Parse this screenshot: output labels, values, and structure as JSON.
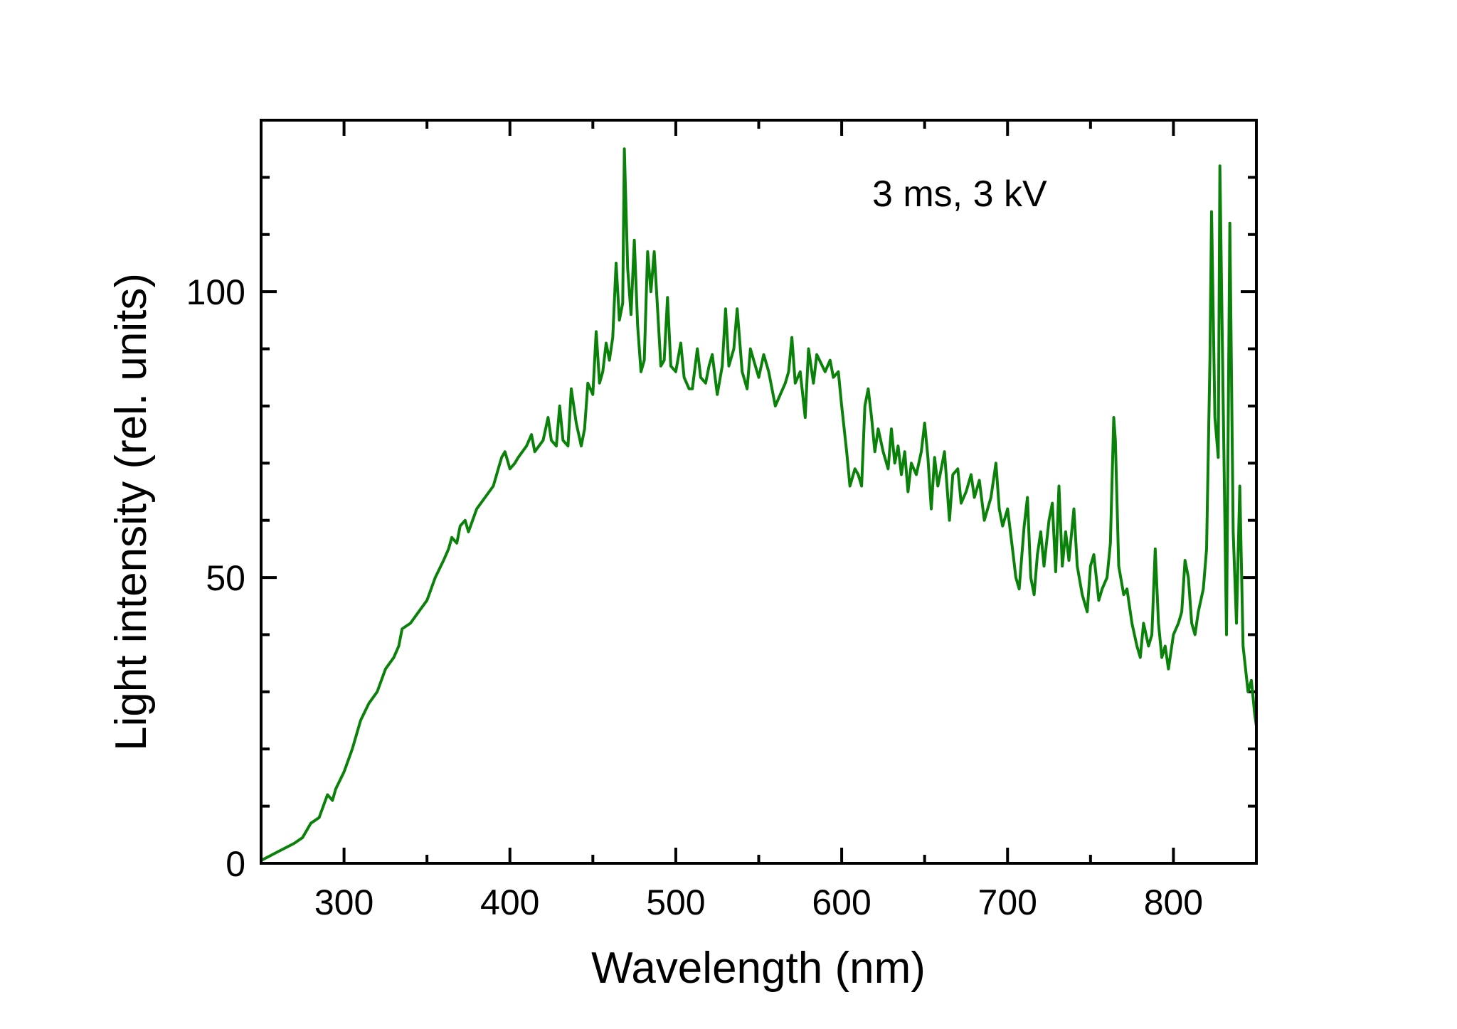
{
  "chart_data": {
    "type": "line",
    "title": "",
    "xlabel": "Wavelength (nm)",
    "ylabel": "Light intensity (rel. units)",
    "xlim": [
      250,
      850
    ],
    "ylim": [
      0,
      130
    ],
    "x_ticks": [
      300,
      400,
      500,
      600,
      700,
      800
    ],
    "x_tick_labels": [
      "300",
      "400",
      "500",
      "600",
      "700",
      "800"
    ],
    "x_minor_step": 50,
    "y_ticks": [
      0,
      50,
      100
    ],
    "y_tick_labels": [
      "0",
      "50",
      "100"
    ],
    "y_minor_step": 10,
    "grid": false,
    "annotation": "3 ms, 3 kV",
    "line_color": "#0a820a",
    "series": [
      {
        "x": [
          250,
          260,
          270,
          275,
          280,
          285,
          290,
          293,
          295,
          300,
          305,
          310,
          315,
          320,
          325,
          330,
          333,
          335,
          340,
          345,
          350,
          355,
          360,
          363,
          365,
          368,
          370,
          373,
          375,
          380,
          385,
          390,
          393,
          395,
          397,
          400,
          403,
          405,
          410,
          413,
          415,
          420,
          423,
          425,
          428,
          430,
          432,
          435,
          437,
          440,
          443,
          445,
          447,
          450,
          452,
          454,
          456,
          458,
          460,
          462,
          464,
          466,
          468,
          469,
          471,
          473,
          475,
          477,
          479,
          481,
          483,
          485,
          487,
          489,
          491,
          493,
          495,
          497,
          500,
          503,
          505,
          508,
          510,
          513,
          515,
          518,
          520,
          522,
          525,
          528,
          530,
          532,
          535,
          537,
          540,
          543,
          545,
          548,
          550,
          553,
          556,
          560,
          563,
          566,
          568,
          570,
          572,
          575,
          578,
          580,
          583,
          585,
          590,
          593,
          595,
          598,
          600,
          603,
          605,
          608,
          610,
          612,
          614,
          616,
          618,
          620,
          622,
          625,
          628,
          630,
          632,
          634,
          636,
          638,
          640,
          642,
          645,
          648,
          650,
          652,
          654,
          656,
          658,
          660,
          662,
          665,
          667,
          670,
          672,
          675,
          678,
          680,
          683,
          686,
          690,
          693,
          695,
          697,
          700,
          703,
          705,
          707,
          710,
          712,
          714,
          716,
          718,
          720,
          722,
          725,
          727,
          729,
          731,
          733,
          735,
          737,
          740,
          742,
          745,
          748,
          750,
          752,
          755,
          757,
          760,
          762,
          764,
          765,
          767,
          770,
          772,
          775,
          778,
          780,
          782,
          785,
          787,
          789,
          791,
          793,
          795,
          797,
          800,
          803,
          805,
          807,
          809,
          811,
          813,
          815,
          818,
          820,
          822,
          823,
          825,
          827,
          828,
          830,
          832,
          834,
          836,
          838,
          840,
          842,
          845,
          847,
          849,
          850
        ],
        "y": [
          0.5,
          2,
          3.5,
          4.5,
          7,
          8,
          12,
          11,
          13,
          16,
          20,
          25,
          28,
          30,
          34,
          36,
          38,
          41,
          42,
          44,
          46,
          50,
          53,
          55,
          57,
          56,
          59,
          60,
          58,
          62,
          64,
          66,
          69,
          71,
          72,
          69,
          70,
          71,
          73,
          75,
          72,
          74,
          78,
          74,
          73,
          80,
          74,
          73,
          83,
          77,
          73,
          76,
          84,
          82,
          93,
          84,
          86,
          91,
          88,
          92,
          105,
          95,
          98,
          125,
          104,
          96,
          109,
          94,
          86,
          88,
          107,
          100,
          107,
          97,
          87,
          88,
          99,
          87,
          86,
          91,
          85,
          83,
          83,
          90,
          85,
          84,
          87,
          89,
          82,
          87,
          97,
          87,
          90,
          97,
          86,
          83,
          90,
          87,
          85,
          89,
          86,
          80,
          82,
          84,
          86,
          92,
          84,
          86,
          78,
          90,
          84,
          89,
          86,
          88,
          85,
          86,
          80,
          72,
          66,
          69,
          68,
          66,
          80,
          83,
          78,
          72,
          76,
          72,
          69,
          76,
          70,
          73,
          68,
          72,
          65,
          70,
          68,
          72,
          77,
          71,
          62,
          71,
          66,
          69,
          72,
          60,
          68,
          69,
          63,
          65,
          68,
          64,
          67,
          60,
          64,
          70,
          62,
          59,
          62,
          55,
          50,
          48,
          59,
          64,
          50,
          47,
          54,
          58,
          52,
          60,
          63,
          51,
          66,
          52,
          58,
          53,
          62,
          52,
          47,
          44,
          52,
          54,
          46,
          48,
          50,
          56,
          78,
          74,
          52,
          47,
          48,
          42,
          38,
          36,
          42,
          38,
          40,
          55,
          42,
          36,
          38,
          34,
          40,
          42,
          44,
          53,
          50,
          42,
          40,
          44,
          48,
          55,
          88,
          114,
          78,
          71,
          122,
          80,
          40,
          112,
          58,
          42,
          66,
          38,
          30,
          32,
          26,
          24
        ]
      }
    ]
  }
}
